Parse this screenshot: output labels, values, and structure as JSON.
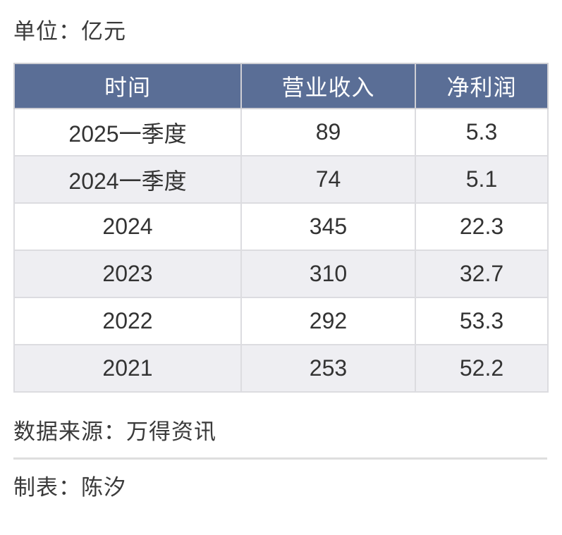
{
  "labels": {
    "unit": "单位：亿元",
    "source": "数据来源：万得资讯",
    "author": "制表：陈汐"
  },
  "table": {
    "columns": [
      "时间",
      "营业收入",
      "净利润"
    ],
    "rows": [
      {
        "time": "2025一季度",
        "revenue": "89",
        "profit": "5.3"
      },
      {
        "time": "2024一季度",
        "revenue": "74",
        "profit": "5.1"
      },
      {
        "time": "2024",
        "revenue": "345",
        "profit": "22.3"
      },
      {
        "time": "2023",
        "revenue": "310",
        "profit": "32.7"
      },
      {
        "time": "2022",
        "revenue": "292",
        "profit": "53.3"
      },
      {
        "time": "2021",
        "revenue": "253",
        "profit": "52.2"
      }
    ]
  },
  "colors": {
    "header_bg": "#5a6e96",
    "header_text": "#ffffff",
    "row_bg": "#ffffff",
    "row_alt_bg": "#eeeef2",
    "cell_border": "#dcdce0",
    "body_text": "#333333",
    "divider": "#dedede"
  },
  "chart_data": {
    "type": "table",
    "title": "单位：亿元",
    "columns": [
      "时间",
      "营业收入",
      "净利润"
    ],
    "rows": [
      [
        "2025一季度",
        89,
        5.3
      ],
      [
        "2024一季度",
        74,
        5.1
      ],
      [
        "2024",
        345,
        22.3
      ],
      [
        "2023",
        310,
        32.7
      ],
      [
        "2022",
        292,
        53.3
      ],
      [
        "2021",
        253,
        52.2
      ]
    ],
    "annotations": [
      "数据来源：万得资讯",
      "制表：陈汐"
    ]
  }
}
